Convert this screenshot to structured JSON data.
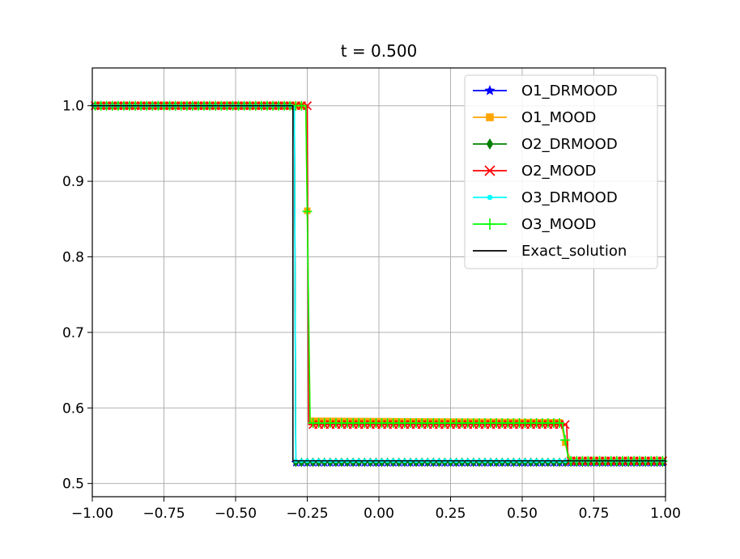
{
  "chart_data": {
    "type": "line",
    "title": "t = 0.500",
    "xlabel": "",
    "ylabel": "",
    "xlim": [
      -1.0,
      1.0
    ],
    "ylim": [
      0.4825,
      1.05
    ],
    "grid": true,
    "legend_placement": "top-right",
    "x_ticks": [
      -1.0,
      -0.75,
      -0.5,
      -0.25,
      0.0,
      0.25,
      0.5,
      0.75,
      1.0
    ],
    "x_tick_labels": [
      "−1.00",
      "−0.75",
      "−0.50",
      "−0.25",
      "0.00",
      "0.25",
      "0.50",
      "0.75",
      "1.00"
    ],
    "y_ticks": [
      0.5,
      0.6,
      0.7,
      0.8,
      0.9,
      1.0
    ],
    "y_tick_labels": [
      "0.5",
      "0.6",
      "0.7",
      "0.8",
      "0.9",
      "1.0"
    ],
    "series": [
      {
        "name": "O1_DRMOOD",
        "color": "#0000ff",
        "marker": "star",
        "profile": [
          [
            -1.0,
            1.0
          ],
          [
            -0.295,
            1.0
          ],
          [
            -0.29,
            0.5275
          ],
          [
            1.0,
            0.5275
          ]
        ]
      },
      {
        "name": "O1_MOOD",
        "color": "#ffa500",
        "marker": "square",
        "profile": [
          [
            -1.0,
            1.0
          ],
          [
            -0.255,
            1.0
          ],
          [
            -0.24,
            0.583
          ],
          [
            0.635,
            0.581
          ],
          [
            0.655,
            0.545
          ],
          [
            0.67,
            0.53
          ],
          [
            1.0,
            0.53
          ]
        ]
      },
      {
        "name": "O2_DRMOOD",
        "color": "#008000",
        "marker": "diamond",
        "profile": [
          [
            -1.0,
            1.0
          ],
          [
            -0.295,
            1.0
          ],
          [
            -0.29,
            0.528
          ],
          [
            1.0,
            0.528
          ]
        ]
      },
      {
        "name": "O2_MOOD",
        "color": "#ff0000",
        "marker": "x",
        "profile": [
          [
            -1.0,
            1.0
          ],
          [
            -0.25,
            1.0
          ],
          [
            -0.245,
            0.578
          ],
          [
            0.655,
            0.578
          ],
          [
            0.66,
            0.53
          ],
          [
            1.0,
            0.53
          ]
        ]
      },
      {
        "name": "O3_DRMOOD",
        "color": "#00ffff",
        "marker": "point",
        "profile": [
          [
            -1.0,
            1.0
          ],
          [
            -0.295,
            1.0
          ],
          [
            -0.29,
            0.53
          ],
          [
            1.0,
            0.53
          ]
        ]
      },
      {
        "name": "O3_MOOD",
        "color": "#00ff00",
        "marker": "plus",
        "profile": [
          [
            -1.0,
            1.0
          ],
          [
            -0.255,
            1.0
          ],
          [
            -0.24,
            0.58
          ],
          [
            0.64,
            0.58
          ],
          [
            0.66,
            0.535
          ],
          [
            0.67,
            0.53
          ],
          [
            1.0,
            0.53
          ]
        ]
      },
      {
        "name": "Exact_solution",
        "color": "#000000",
        "marker": "none",
        "profile": [
          [
            -1.0,
            1.0
          ],
          [
            -0.3,
            1.0
          ],
          [
            -0.3,
            0.53
          ],
          [
            0.65,
            0.53
          ],
          [
            0.65,
            0.53
          ],
          [
            1.0,
            0.53
          ]
        ]
      }
    ]
  }
}
